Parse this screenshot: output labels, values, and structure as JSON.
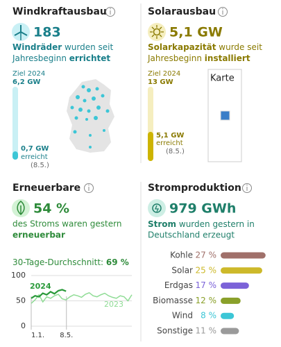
{
  "wind": {
    "title": "Windkraftausbau",
    "count": "183",
    "desc_bold": "Windräder",
    "desc": "wurden seit",
    "desc2": "Jahresbeginn",
    "desc2_bold": "errichtet",
    "goal_title": "Ziel 2024",
    "goal": {
      "value": 6.2,
      "label": "6,2 GW"
    },
    "current": {
      "value": 0.7,
      "label": "0,7 GW"
    },
    "current_note": "erreicht",
    "date": "(8.5.)"
  },
  "solar": {
    "title": "Solarausbau",
    "count": "5,1 GW",
    "desc_bold": "Solarkapazität",
    "desc": "wurde seit",
    "desc2": "Jahresbeginn",
    "desc2_bold": "installiert",
    "goal_title": "Ziel 2024",
    "goal": {
      "value": 13,
      "label": "13 GW"
    },
    "current": {
      "value": 5.1,
      "label": "5,1 GW"
    },
    "current_note": "erreicht",
    "date": "(8.5.)",
    "map": "Karte"
  },
  "renewables": {
    "title": "Erneuerbare",
    "share": "54 %",
    "desc": "des Stroms waren gestern",
    "desc_bold": "erneuerbar",
    "avg_label": "30-Tage-Durchschnitt:",
    "avg": "69 %",
    "chart": {
      "type": "line",
      "xlim": [
        0,
        26
      ],
      "ylim": [
        0,
        100
      ],
      "yticks": [
        0,
        50,
        100
      ],
      "xticks": [
        {
          "value": 0,
          "label": "1.1."
        },
        {
          "value": 9.1,
          "label": "8.5."
        }
      ],
      "series": [
        {
          "name": "2024",
          "color": "#2a9a3a",
          "values": [
            55,
            60,
            58,
            65,
            62,
            68,
            64,
            70,
            72,
            69
          ]
        },
        {
          "name": "2023",
          "color": "#8fdc95",
          "values": [
            45,
            52,
            62,
            48,
            58,
            55,
            60,
            63,
            54,
            52,
            58,
            62,
            60,
            57,
            63,
            66,
            60,
            58,
            62,
            65,
            60,
            57,
            55,
            60,
            58,
            50,
            62
          ]
        }
      ]
    }
  },
  "production": {
    "title": "Stromproduktion",
    "total": "979 GWh",
    "desc_bold": "Strom",
    "desc": "wurden gestern in",
    "desc2": "Deutschland erzeugt",
    "chart": {
      "type": "bar",
      "categories": [
        "Kohle",
        "Solar",
        "Erdgas",
        "Biomasse",
        "Wind",
        "Sonstige"
      ],
      "values": [
        27,
        25,
        17,
        12,
        8,
        11
      ],
      "value_labels": [
        "27 %",
        "25 %",
        "17 %",
        "12 %",
        "8 %",
        "11 %"
      ],
      "colors": [
        "#a0706a",
        "#cdb92a",
        "#7b62d8",
        "#8aa02a",
        "#3cc6d6",
        "#9a9a9a"
      ]
    }
  }
}
